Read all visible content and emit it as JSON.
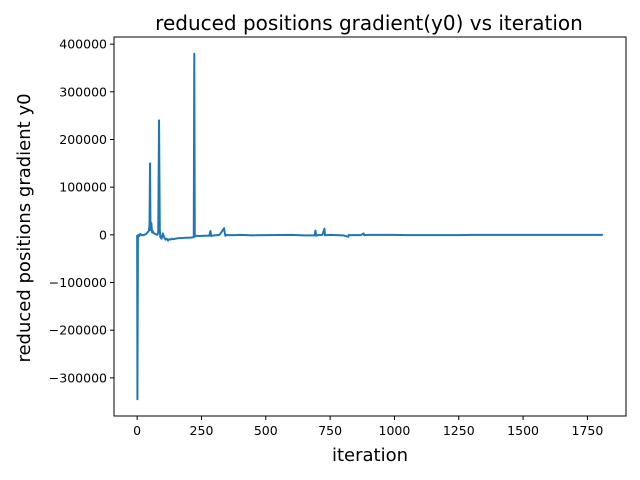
{
  "chart_data": {
    "type": "line",
    "title": "reduced positions gradient(y0) vs iteration",
    "xlabel": "iteration",
    "ylabel": "reduced positions gradient y0",
    "xlim": [
      -90,
      1900
    ],
    "ylim": [
      -380000,
      415000
    ],
    "xticks": [
      0,
      250,
      500,
      750,
      1000,
      1250,
      1500,
      1750
    ],
    "xtick_labels": [
      "0",
      "250",
      "500",
      "750",
      "1000",
      "1250",
      "1500",
      "1750"
    ],
    "yticks": [
      -300000,
      -200000,
      -100000,
      0,
      100000,
      200000,
      300000,
      400000
    ],
    "ytick_labels": [
      "−300000",
      "−200000",
      "−100000",
      "0",
      "100000",
      "200000",
      "300000",
      "400000"
    ],
    "grid": false,
    "line_color": "#1f77b4",
    "series": [
      {
        "x": [
          0,
          1,
          3,
          5,
          8,
          12,
          20,
          28,
          35,
          40,
          45,
          48,
          50,
          52,
          55,
          58,
          60,
          65,
          70,
          78,
          82,
          85,
          88,
          90,
          95,
          100,
          105,
          110,
          115,
          120,
          125,
          130,
          135,
          140,
          150,
          160,
          170,
          180,
          190,
          200,
          210,
          220,
          222,
          224,
          227,
          230,
          240,
          260,
          280,
          285,
          288,
          290,
          300,
          320,
          338,
          340,
          343,
          346,
          350,
          380,
          400,
          450,
          500,
          600,
          650,
          690,
          693,
          696,
          700,
          720,
          728,
          730,
          733,
          736,
          750,
          800,
          820,
          823,
          826,
          830,
          870,
          880,
          883,
          886,
          900,
          950,
          1000,
          1050,
          1100,
          1150,
          1200,
          1250,
          1300,
          1350,
          1400,
          1450,
          1500,
          1550,
          1600,
          1650,
          1700,
          1750,
          1810
        ],
        "y": [
          0,
          -345000,
          -5000,
          0,
          -3000,
          2000,
          -1000,
          0,
          2000,
          5000,
          8000,
          20000,
          150000,
          10000,
          25000,
          5000,
          8000,
          3000,
          2000,
          0,
          5000,
          240000,
          10000,
          -5000,
          -8000,
          3000,
          -5000,
          -10000,
          -8000,
          -12000,
          -9000,
          -10000,
          -8000,
          -9000,
          -8000,
          -7000,
          -7000,
          -6500,
          -6000,
          -6000,
          -5500,
          -5000,
          380000,
          -3000,
          -3000,
          -2000,
          -2500,
          -2000,
          -2000,
          8000,
          -3000,
          -2000,
          -1000,
          0,
          14000,
          5000,
          -2000,
          0,
          -500,
          -500,
          0,
          -1000,
          -500,
          0,
          -1000,
          -1000,
          9000,
          -2000,
          -500,
          0,
          13000,
          -1000,
          -500,
          -500,
          0,
          -1000,
          -4000,
          0,
          -1000,
          -500,
          -500,
          3000,
          -1000,
          -500,
          0,
          0,
          0,
          -500,
          -500,
          -500,
          -500,
          -500,
          0,
          0,
          0,
          0,
          0,
          0,
          0,
          0,
          0,
          0,
          0
        ]
      }
    ]
  }
}
